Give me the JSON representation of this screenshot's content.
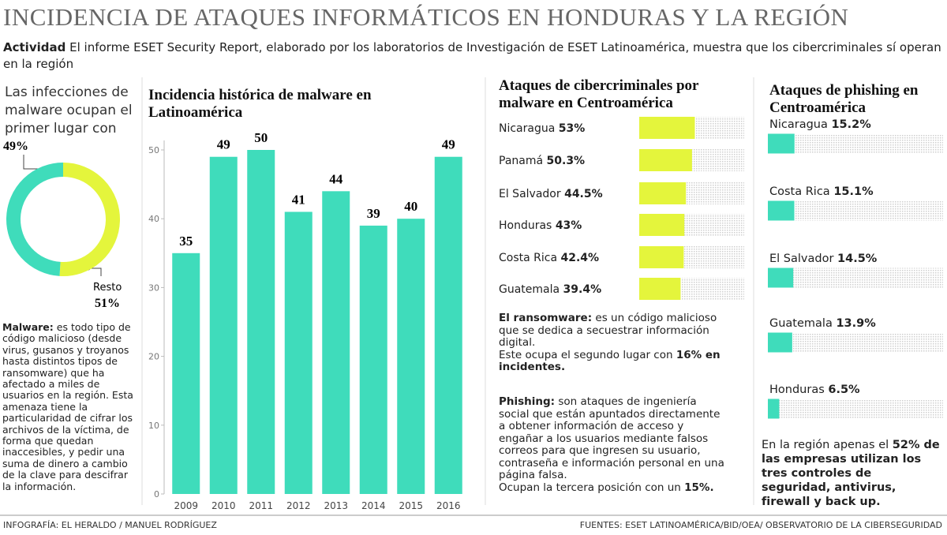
{
  "header": {
    "title": "INCIDENCIA DE ATAQUES INFORMÁTICOS EN HONDURAS Y LA REGIÓN",
    "lead_term": "Actividad",
    "lead": "El informe ESET Security Report, elaborado por los laboratorios de Investigación de ESET Latinoamérica, muestra que los cibercriminales sí operan en la región"
  },
  "chart_data": [
    {
      "type": "pie",
      "title": "Las infecciones de malware ocupan el primer lugar con",
      "categories": [
        null,
        "Resto"
      ],
      "values": [
        49,
        51
      ],
      "value_labels": [
        "49%",
        "51%"
      ],
      "colors": [
        "#3fdcbb",
        "#e4f53c"
      ]
    },
    {
      "type": "bar",
      "title": "Incidencia histórica de malware en Latinoamérica",
      "categories": [
        "2009",
        "2010",
        "2011",
        "2012",
        "2013",
        "2014",
        "2015",
        "2016"
      ],
      "values": [
        35,
        49,
        50,
        41,
        44,
        39,
        40,
        49
      ],
      "color": "#3fdcbb",
      "ylim": [
        0,
        50
      ],
      "yticks": [
        0,
        10,
        20,
        30,
        40,
        50
      ]
    },
    {
      "type": "hbar",
      "title": "Ataques de cibercriminales por malware en Centroamérica",
      "categories": [
        "Nicaragua",
        "Panamá",
        "El Salvador",
        "Honduras",
        "Costa Rica",
        "Guatemala"
      ],
      "values": [
        53,
        50.3,
        44.5,
        43,
        42.4,
        39.4
      ],
      "value_labels": [
        "53%",
        "50.3%",
        "44.5%",
        "43%",
        "42.4%",
        "39.4%"
      ],
      "color": "#e4f53c",
      "xlim": [
        0,
        100
      ]
    },
    {
      "type": "hbar",
      "title": "Ataques de phishing en Centroamérica",
      "categories": [
        "Nicaragua",
        "Costa Rica",
        "El Salvador",
        "Guatemala",
        "Honduras"
      ],
      "values": [
        15.2,
        15.1,
        14.5,
        13.9,
        6.5
      ],
      "value_labels": [
        "15.2%",
        "15.1%",
        "14.5%",
        "13.9%",
        "6.5%"
      ],
      "color": "#3fdcbb",
      "xlim": [
        0,
        100
      ]
    }
  ],
  "notes": {
    "malware": {
      "term": "Malware:",
      "text": "es todo tipo de código malicioso (desde virus, gusanos y troyanos hasta distintos tipos de ransomware) que ha afectado a miles de usuarios en la región. Esta amenaza tiene la particularidad de cifrar los archivos de la víctima, de forma que quedan inaccesibles, y pedir una suma de dinero a cambio de la clave para descifrar la información."
    },
    "ransomware": {
      "term": "El ransomware:",
      "text": "es un código malicioso que se dedica a secuestrar información digital.",
      "text2": "Este ocupa el segundo lugar con",
      "highlight": "16% en incidentes."
    },
    "phishing": {
      "term": "Phishing:",
      "text": "son ataques de ingeniería social que están apuntados directamente a obtener información de acceso y engañar a los usuarios mediante falsos correos para que ingresen su usuario, contraseña e información personal en una página falsa.",
      "text2": "Ocupan la tercera posición con un",
      "highlight": "15%."
    },
    "region": {
      "text": "En la región apenas el",
      "highlight": "52% de las empresas utilizan los tres controles de seguridad, antivirus, firewall y back up."
    }
  },
  "footer": {
    "credit": "INFOGRAFÍA: EL HERALDO / MANUEL RODRÍGUEZ",
    "sources": "FUENTES: ESET LATINOAMÉRICA/BID/OEA/ OBSERVATORIO DE LA CIBERSEGURIDAD"
  }
}
